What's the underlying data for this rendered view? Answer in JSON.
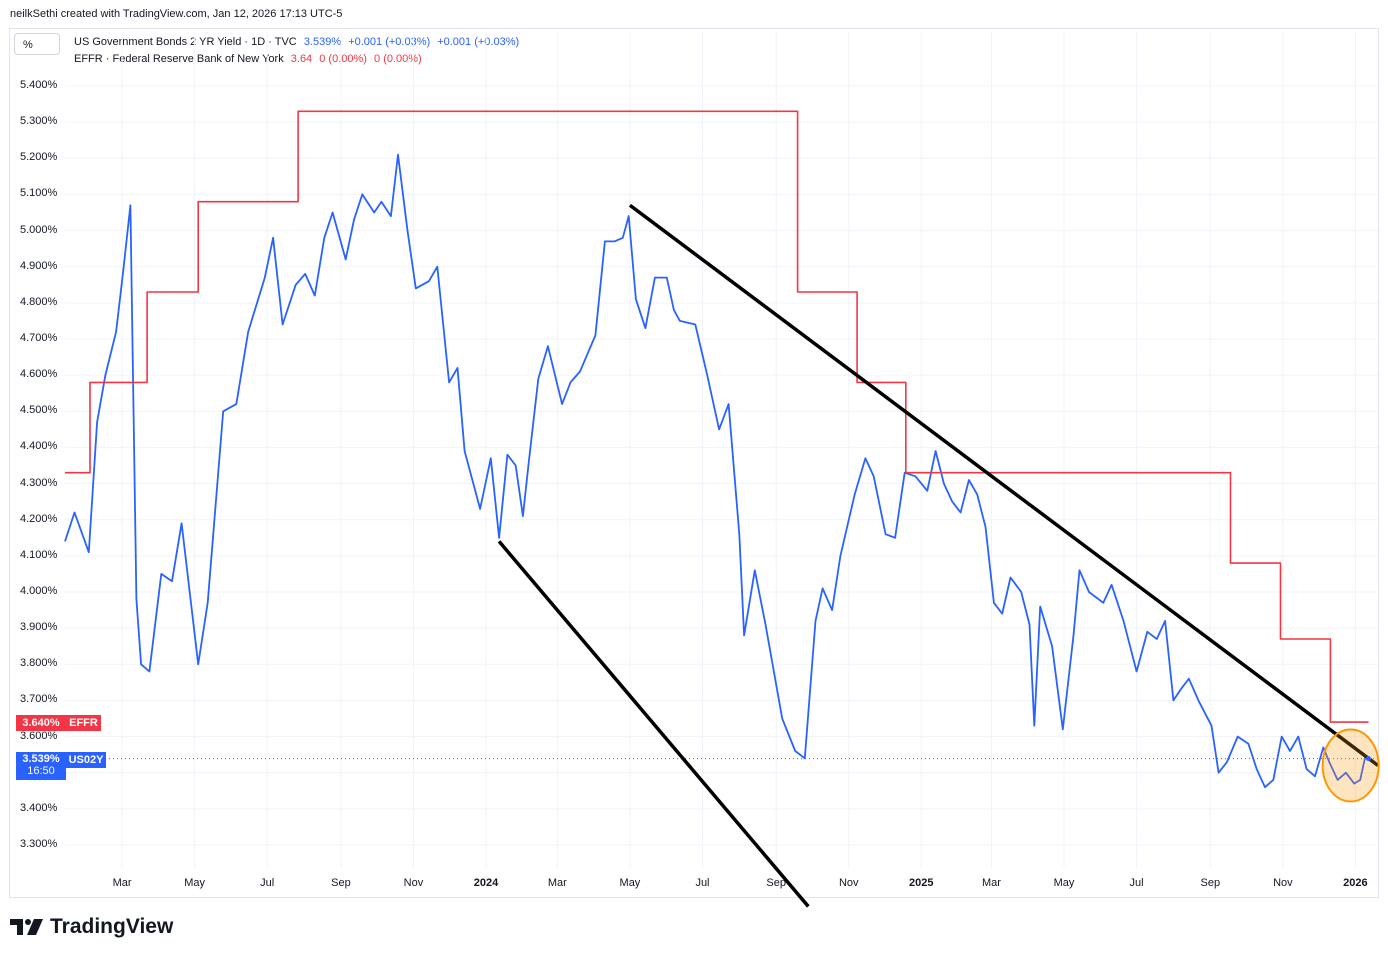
{
  "header": "neilkSethi created with TradingView.com, Jan 12, 2026 17:13 UTC-5",
  "unit_button": "%",
  "legend": {
    "series1": {
      "name": "US Government Bonds 2 YR Yield · 1D · TVC",
      "last": "3.539%",
      "change1": "+0.001 (+0.03%)",
      "change2": "+0.001 (+0.03%)"
    },
    "series2": {
      "name": "EFFR · Federal Reserve Bank of New York",
      "last": "3.64",
      "change1": "0 (0.00%)",
      "change2": "0 (0.00%)"
    }
  },
  "badges": {
    "effr_value": "3.640%",
    "effr_label": "EFFR",
    "us02y_value": "3.539%",
    "us02y_time": "16:50",
    "us02y_label": "US02Y"
  },
  "brand": "TradingView",
  "colors": {
    "blue": "#2962ff",
    "red": "#f23645",
    "trend": "#000000",
    "highlight": "#ff9800"
  },
  "chart_data": {
    "type": "line",
    "y_ticks": [
      "5.400%",
      "5.300%",
      "5.200%",
      "5.100%",
      "5.000%",
      "4.900%",
      "4.800%",
      "4.700%",
      "4.600%",
      "4.500%",
      "4.400%",
      "4.300%",
      "4.200%",
      "4.100%",
      "4.000%",
      "3.900%",
      "3.800%",
      "3.700%",
      "3.600%",
      "3.500%",
      "3.400%",
      "3.300%"
    ],
    "x_ticks": [
      {
        "label": "Mar",
        "bold": false
      },
      {
        "label": "May",
        "bold": false
      },
      {
        "label": "Jul",
        "bold": false
      },
      {
        "label": "Sep",
        "bold": false
      },
      {
        "label": "Nov",
        "bold": false
      },
      {
        "label": "2024",
        "bold": true
      },
      {
        "label": "Mar",
        "bold": false
      },
      {
        "label": "May",
        "bold": false
      },
      {
        "label": "Jul",
        "bold": false
      },
      {
        "label": "Sep",
        "bold": false
      },
      {
        "label": "Nov",
        "bold": false
      },
      {
        "label": "2025",
        "bold": true
      },
      {
        "label": "Mar",
        "bold": false
      },
      {
        "label": "May",
        "bold": false
      },
      {
        "label": "Jul",
        "bold": false
      },
      {
        "label": "Sep",
        "bold": false
      },
      {
        "label": "Nov",
        "bold": false
      },
      {
        "label": "2026",
        "bold": true
      }
    ],
    "x_range": [
      "2023-01-12",
      "2026-01-20"
    ],
    "ylim": [
      3.25,
      5.45
    ],
    "grid": true,
    "series": [
      {
        "name": "US02Y",
        "color": "#2962ff",
        "points": [
          [
            "2023-01-12",
            4.14
          ],
          [
            "2023-01-20",
            4.22
          ],
          [
            "2023-02-01",
            4.11
          ],
          [
            "2023-02-08",
            4.47
          ],
          [
            "2023-02-15",
            4.6
          ],
          [
            "2023-02-24",
            4.72
          ],
          [
            "2023-03-02",
            4.89
          ],
          [
            "2023-03-08",
            5.07
          ],
          [
            "2023-03-13",
            3.98
          ],
          [
            "2023-03-17",
            3.8
          ],
          [
            "2023-03-24",
            3.78
          ],
          [
            "2023-04-03",
            4.05
          ],
          [
            "2023-04-12",
            4.03
          ],
          [
            "2023-04-20",
            4.19
          ],
          [
            "2023-05-04",
            3.8
          ],
          [
            "2023-05-12",
            3.97
          ],
          [
            "2023-05-25",
            4.5
          ],
          [
            "2023-06-05",
            4.52
          ],
          [
            "2023-06-15",
            4.72
          ],
          [
            "2023-06-29",
            4.87
          ],
          [
            "2023-07-06",
            4.98
          ],
          [
            "2023-07-14",
            4.74
          ],
          [
            "2023-07-25",
            4.85
          ],
          [
            "2023-08-02",
            4.88
          ],
          [
            "2023-08-10",
            4.82
          ],
          [
            "2023-08-18",
            4.98
          ],
          [
            "2023-08-25",
            5.05
          ],
          [
            "2023-09-05",
            4.92
          ],
          [
            "2023-09-12",
            5.03
          ],
          [
            "2023-09-19",
            5.1
          ],
          [
            "2023-09-29",
            5.05
          ],
          [
            "2023-10-05",
            5.08
          ],
          [
            "2023-10-13",
            5.04
          ],
          [
            "2023-10-19",
            5.21
          ],
          [
            "2023-10-27",
            5.0
          ],
          [
            "2023-11-03",
            4.84
          ],
          [
            "2023-11-14",
            4.86
          ],
          [
            "2023-11-21",
            4.9
          ],
          [
            "2023-12-01",
            4.58
          ],
          [
            "2023-12-08",
            4.62
          ],
          [
            "2023-12-14",
            4.39
          ],
          [
            "2023-12-27",
            4.23
          ],
          [
            "2024-01-05",
            4.37
          ],
          [
            "2024-01-12",
            4.15
          ],
          [
            "2024-01-19",
            4.38
          ],
          [
            "2024-01-26",
            4.35
          ],
          [
            "2024-02-01",
            4.21
          ],
          [
            "2024-02-06",
            4.36
          ],
          [
            "2024-02-14",
            4.59
          ],
          [
            "2024-02-22",
            4.68
          ],
          [
            "2024-03-05",
            4.52
          ],
          [
            "2024-03-12",
            4.58
          ],
          [
            "2024-03-20",
            4.61
          ],
          [
            "2024-04-02",
            4.71
          ],
          [
            "2024-04-10",
            4.97
          ],
          [
            "2024-04-18",
            4.97
          ],
          [
            "2024-04-25",
            4.98
          ],
          [
            "2024-04-30",
            5.04
          ],
          [
            "2024-05-06",
            4.81
          ],
          [
            "2024-05-14",
            4.73
          ],
          [
            "2024-05-22",
            4.87
          ],
          [
            "2024-06-01",
            4.87
          ],
          [
            "2024-06-07",
            4.78
          ],
          [
            "2024-06-12",
            4.75
          ],
          [
            "2024-06-25",
            4.74
          ],
          [
            "2024-07-05",
            4.6
          ],
          [
            "2024-07-15",
            4.45
          ],
          [
            "2024-07-23",
            4.52
          ],
          [
            "2024-08-01",
            4.16
          ],
          [
            "2024-08-05",
            3.88
          ],
          [
            "2024-08-14",
            4.06
          ],
          [
            "2024-08-23",
            3.91
          ],
          [
            "2024-09-06",
            3.65
          ],
          [
            "2024-09-17",
            3.56
          ],
          [
            "2024-09-25",
            3.54
          ],
          [
            "2024-10-04",
            3.92
          ],
          [
            "2024-10-10",
            4.01
          ],
          [
            "2024-10-18",
            3.95
          ],
          [
            "2024-10-25",
            4.1
          ],
          [
            "2024-11-01",
            4.2
          ],
          [
            "2024-11-06",
            4.27
          ],
          [
            "2024-11-15",
            4.37
          ],
          [
            "2024-11-22",
            4.32
          ],
          [
            "2024-12-02",
            4.16
          ],
          [
            "2024-12-10",
            4.15
          ],
          [
            "2024-12-18",
            4.33
          ],
          [
            "2024-12-27",
            4.32
          ],
          [
            "2025-01-06",
            4.28
          ],
          [
            "2025-01-13",
            4.39
          ],
          [
            "2025-01-20",
            4.3
          ],
          [
            "2025-01-27",
            4.25
          ],
          [
            "2025-02-03",
            4.22
          ],
          [
            "2025-02-10",
            4.31
          ],
          [
            "2025-02-17",
            4.27
          ],
          [
            "2025-02-24",
            4.18
          ],
          [
            "2025-03-03",
            3.97
          ],
          [
            "2025-03-10",
            3.94
          ],
          [
            "2025-03-17",
            4.04
          ],
          [
            "2025-03-26",
            4.0
          ],
          [
            "2025-04-02",
            3.91
          ],
          [
            "2025-04-06",
            3.63
          ],
          [
            "2025-04-11",
            3.96
          ],
          [
            "2025-04-21",
            3.85
          ],
          [
            "2025-04-30",
            3.62
          ],
          [
            "2025-05-09",
            3.88
          ],
          [
            "2025-05-14",
            4.06
          ],
          [
            "2025-05-22",
            4.0
          ],
          [
            "2025-06-03",
            3.97
          ],
          [
            "2025-06-10",
            4.02
          ],
          [
            "2025-06-20",
            3.92
          ],
          [
            "2025-07-01",
            3.78
          ],
          [
            "2025-07-10",
            3.89
          ],
          [
            "2025-07-18",
            3.87
          ],
          [
            "2025-07-25",
            3.92
          ],
          [
            "2025-08-01",
            3.7
          ],
          [
            "2025-08-07",
            3.73
          ],
          [
            "2025-08-14",
            3.76
          ],
          [
            "2025-08-22",
            3.7
          ],
          [
            "2025-09-02",
            3.63
          ],
          [
            "2025-09-08",
            3.5
          ],
          [
            "2025-09-15",
            3.53
          ],
          [
            "2025-09-24",
            3.6
          ],
          [
            "2025-10-03",
            3.58
          ],
          [
            "2025-10-10",
            3.51
          ],
          [
            "2025-10-17",
            3.46
          ],
          [
            "2025-10-24",
            3.48
          ],
          [
            "2025-10-31",
            3.6
          ],
          [
            "2025-11-07",
            3.56
          ],
          [
            "2025-11-14",
            3.6
          ],
          [
            "2025-11-21",
            3.51
          ],
          [
            "2025-11-28",
            3.49
          ],
          [
            "2025-12-05",
            3.57
          ],
          [
            "2025-12-10",
            3.53
          ],
          [
            "2025-12-17",
            3.48
          ],
          [
            "2025-12-24",
            3.5
          ],
          [
            "2025-12-31",
            3.47
          ],
          [
            "2026-01-05",
            3.48
          ],
          [
            "2026-01-09",
            3.54
          ],
          [
            "2026-01-12",
            3.539
          ]
        ]
      },
      {
        "name": "EFFR",
        "color": "#f23645",
        "step": true,
        "points": [
          [
            "2023-01-12",
            4.33
          ],
          [
            "2023-02-02",
            4.58
          ],
          [
            "2023-03-22",
            4.83
          ],
          [
            "2023-05-04",
            5.08
          ],
          [
            "2023-07-27",
            5.33
          ],
          [
            "2024-09-19",
            4.83
          ],
          [
            "2024-11-08",
            4.58
          ],
          [
            "2024-12-19",
            4.33
          ],
          [
            "2025-09-18",
            4.08
          ],
          [
            "2025-10-30",
            3.87
          ],
          [
            "2025-12-11",
            3.64
          ],
          [
            "2026-01-12",
            3.64
          ]
        ]
      }
    ],
    "annotations": {
      "trendlines": [
        {
          "from": [
            "2024-01-12",
            4.14
          ],
          "to": [
            "2024-09-28",
            3.13
          ]
        },
        {
          "from": [
            "2024-05-01",
            5.07
          ],
          "to": [
            "2026-01-20",
            3.52
          ]
        }
      ],
      "highlight": {
        "center": [
          "2025-12-28",
          3.52
        ],
        "label": ""
      }
    }
  }
}
